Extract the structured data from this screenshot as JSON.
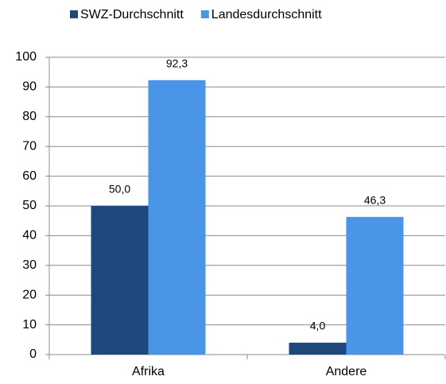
{
  "chart_data": {
    "type": "bar",
    "categories": [
      "Afrika",
      "Andere"
    ],
    "series": [
      {
        "name": "SWZ-Durchschnitt",
        "color": "#1f497d",
        "values": [
          50.0,
          4.0
        ],
        "value_labels": [
          "50,0",
          "4,0"
        ]
      },
      {
        "name": "Landesdurchschnitt",
        "color": "#4a95e8",
        "values": [
          92.3,
          46.3
        ],
        "value_labels": [
          "92,3",
          "46,3"
        ]
      }
    ],
    "ylim": [
      0,
      100
    ],
    "yticks": [
      0,
      10,
      20,
      30,
      40,
      50,
      60,
      70,
      80,
      90,
      100
    ],
    "grid": true,
    "legend": "top"
  }
}
